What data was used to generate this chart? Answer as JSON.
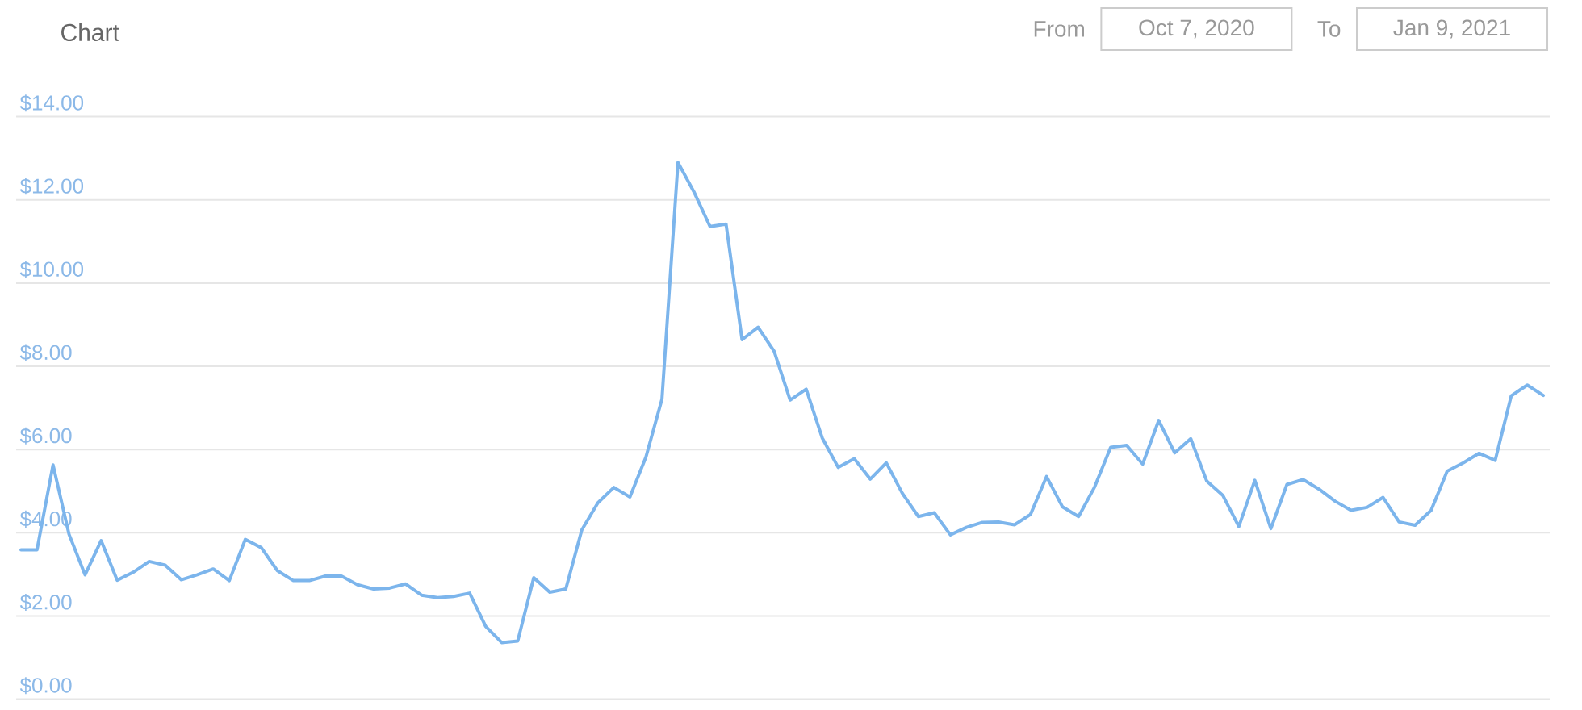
{
  "chart_data": {
    "type": "line",
    "title": "Chart",
    "annotations": [
      "From",
      "Oct 7, 2020",
      "To",
      "Jan 9, 2021"
    ],
    "categories": [
      null,
      null,
      null,
      null,
      null,
      null,
      null,
      null,
      null,
      null,
      null,
      null,
      null,
      null,
      null,
      null,
      null,
      null,
      null,
      null,
      null,
      null,
      null,
      null,
      null,
      null,
      null,
      null,
      null,
      null,
      null,
      null,
      null,
      null,
      null,
      null,
      null,
      null,
      null,
      null,
      null,
      null,
      null,
      null,
      null,
      null,
      null,
      null,
      null,
      null,
      null,
      null,
      null,
      null,
      null,
      null,
      null,
      null,
      null,
      null,
      null,
      null,
      null,
      null,
      null,
      null,
      null,
      null,
      null,
      null,
      null,
      null,
      null,
      null,
      null,
      null,
      null,
      null,
      null,
      null,
      null,
      null,
      null,
      null,
      null,
      null,
      null,
      null,
      null,
      null,
      null,
      null,
      null,
      null,
      null,
      null
    ],
    "values": [
      3.59,
      3.59,
      5.63,
      3.96,
      2.99,
      3.81,
      2.86,
      3.05,
      3.31,
      3.22,
      2.87,
      2.99,
      3.13,
      2.85,
      3.84,
      3.64,
      3.09,
      2.85,
      2.85,
      2.96,
      2.96,
      2.75,
      2.65,
      2.67,
      2.77,
      2.5,
      2.44,
      2.47,
      2.55,
      1.75,
      1.36,
      1.4,
      2.92,
      2.57,
      2.65,
      4.07,
      4.72,
      5.09,
      4.86,
      5.82,
      7.21,
      12.9,
      12.19,
      11.36,
      11.42,
      8.64,
      8.94,
      8.36,
      7.19,
      7.45,
      6.28,
      5.57,
      5.78,
      5.29,
      5.68,
      4.95,
      4.39,
      4.48,
      3.95,
      4.13,
      4.25,
      4.26,
      4.19,
      4.44,
      5.35,
      4.62,
      4.39,
      5.1,
      6.05,
      6.1,
      5.65,
      6.7,
      5.92,
      6.26,
      5.24,
      4.9,
      4.15,
      5.26,
      4.1,
      5.16,
      5.28,
      5.05,
      4.76,
      4.54,
      4.61,
      4.85,
      4.26,
      4.18,
      4.54,
      5.48,
      5.68,
      5.91,
      5.74,
      7.29,
      7.55,
      7.3
    ],
    "color": "#7cb5ec",
    "ylim": [
      0,
      14
    ],
    "yticks": [
      {
        "value": 0,
        "label": "$0.00"
      },
      {
        "value": 2,
        "label": "$2.00"
      },
      {
        "value": 4,
        "label": "$4.00"
      },
      {
        "value": 6,
        "label": "$6.00"
      },
      {
        "value": 8,
        "label": "$8.00"
      },
      {
        "value": 10,
        "label": "$10.00"
      },
      {
        "value": 12,
        "label": "$12.00"
      },
      {
        "value": 14,
        "label": "$14.00"
      }
    ],
    "grid": "y",
    "tick_labels": "y"
  }
}
